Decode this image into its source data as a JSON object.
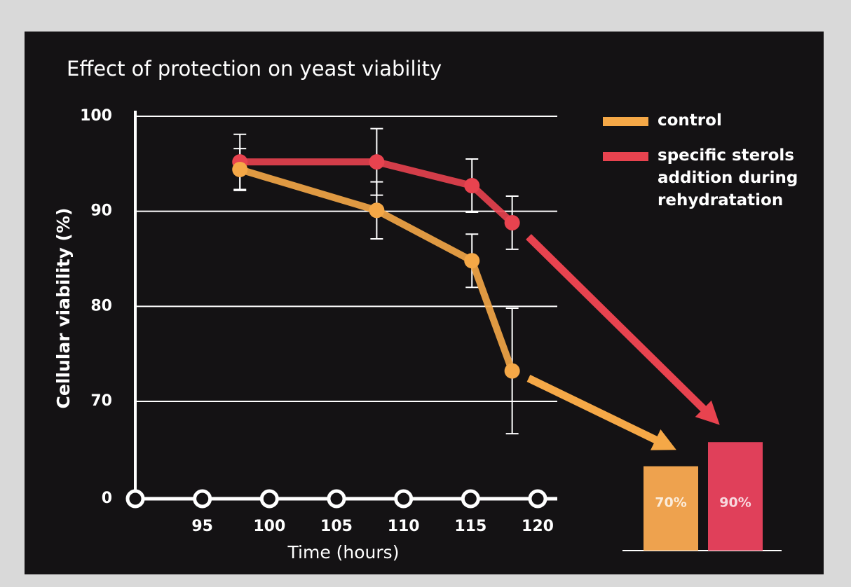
{
  "chart_data": [
    {
      "type": "line",
      "title": "Effect of protection on yeast viability",
      "xlabel": "Time (hours)",
      "ylabel": "Cellular viability (%)",
      "x": [
        97.8,
        108,
        115.1,
        118.1
      ],
      "series": [
        {
          "name": "control",
          "color": "#f5a847",
          "values": [
            94.4,
            90.1,
            84.8,
            73.2
          ],
          "errors": [
            2.2,
            3.0,
            2.8,
            6.6
          ]
        },
        {
          "name": "specific sterols addition during rehydratation",
          "color": "#e8434f",
          "values": [
            95.2,
            95.2,
            92.7,
            88.8
          ],
          "errors": [
            2.9,
            3.5,
            2.8,
            2.8
          ]
        }
      ],
      "xlim": [
        90,
        120
      ],
      "xticks": [
        95,
        100,
        105,
        110,
        115,
        120
      ],
      "ylim": [
        70,
        100
      ],
      "yticks": [
        0,
        70,
        80,
        90,
        100
      ],
      "axis_break": true,
      "grid": true
    },
    {
      "type": "bar",
      "values": [
        70,
        90
      ],
      "value_labels": [
        "70%",
        "90%"
      ],
      "colors": [
        "#eea24e",
        "#e0405a"
      ]
    }
  ]
}
